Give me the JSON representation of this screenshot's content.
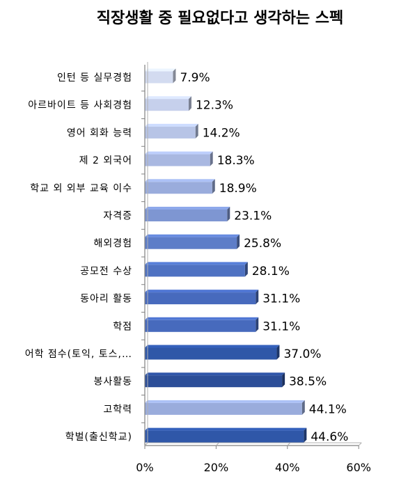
{
  "chart_data": {
    "type": "bar",
    "orientation": "horizontal",
    "title": "직장생활 중 필요없다고 생각하는 스펙",
    "categories": [
      "인턴 등 실무경험",
      "아르바이트 등 사회경험",
      "영어 회화 능력",
      "제 2 외국어",
      "학교 외 외부 교육 이수",
      "자격증",
      "해외경험",
      "공모전 수상",
      "동아리 활동",
      "학점",
      "어학 점수(토익, 토스,…",
      "봉사활동",
      "고학력",
      "학벌(출신학교)"
    ],
    "values": [
      7.9,
      12.3,
      14.2,
      18.3,
      18.9,
      23.1,
      25.8,
      28.1,
      31.1,
      31.1,
      37.0,
      38.5,
      44.1,
      44.6
    ],
    "value_labels": [
      "7.9%",
      "12.3%",
      "14.2%",
      "18.3%",
      "18.9%",
      "23.1%",
      "25.8%",
      "28.1%",
      "31.1%",
      "31.1%",
      "37.0%",
      "38.5%",
      "44.1%",
      "44.6%"
    ],
    "bar_colors": [
      "#d3dbf0",
      "#c6d0ec",
      "#b7c4e6",
      "#a9b8e1",
      "#9aacdc",
      "#7e96d2",
      "#5d7dc8",
      "#4f72c2",
      "#476abd",
      "#476abd",
      "#2f57a8",
      "#2c4e98",
      "#9aacdc",
      "#2f57a8"
    ],
    "xlim": [
      0,
      60
    ],
    "xticks": [
      0,
      20,
      40,
      60
    ],
    "xtick_labels": [
      "0%",
      "20%",
      "40%",
      "60%"
    ],
    "xlabel": "",
    "ylabel": "",
    "grid": false,
    "legend": "none"
  }
}
